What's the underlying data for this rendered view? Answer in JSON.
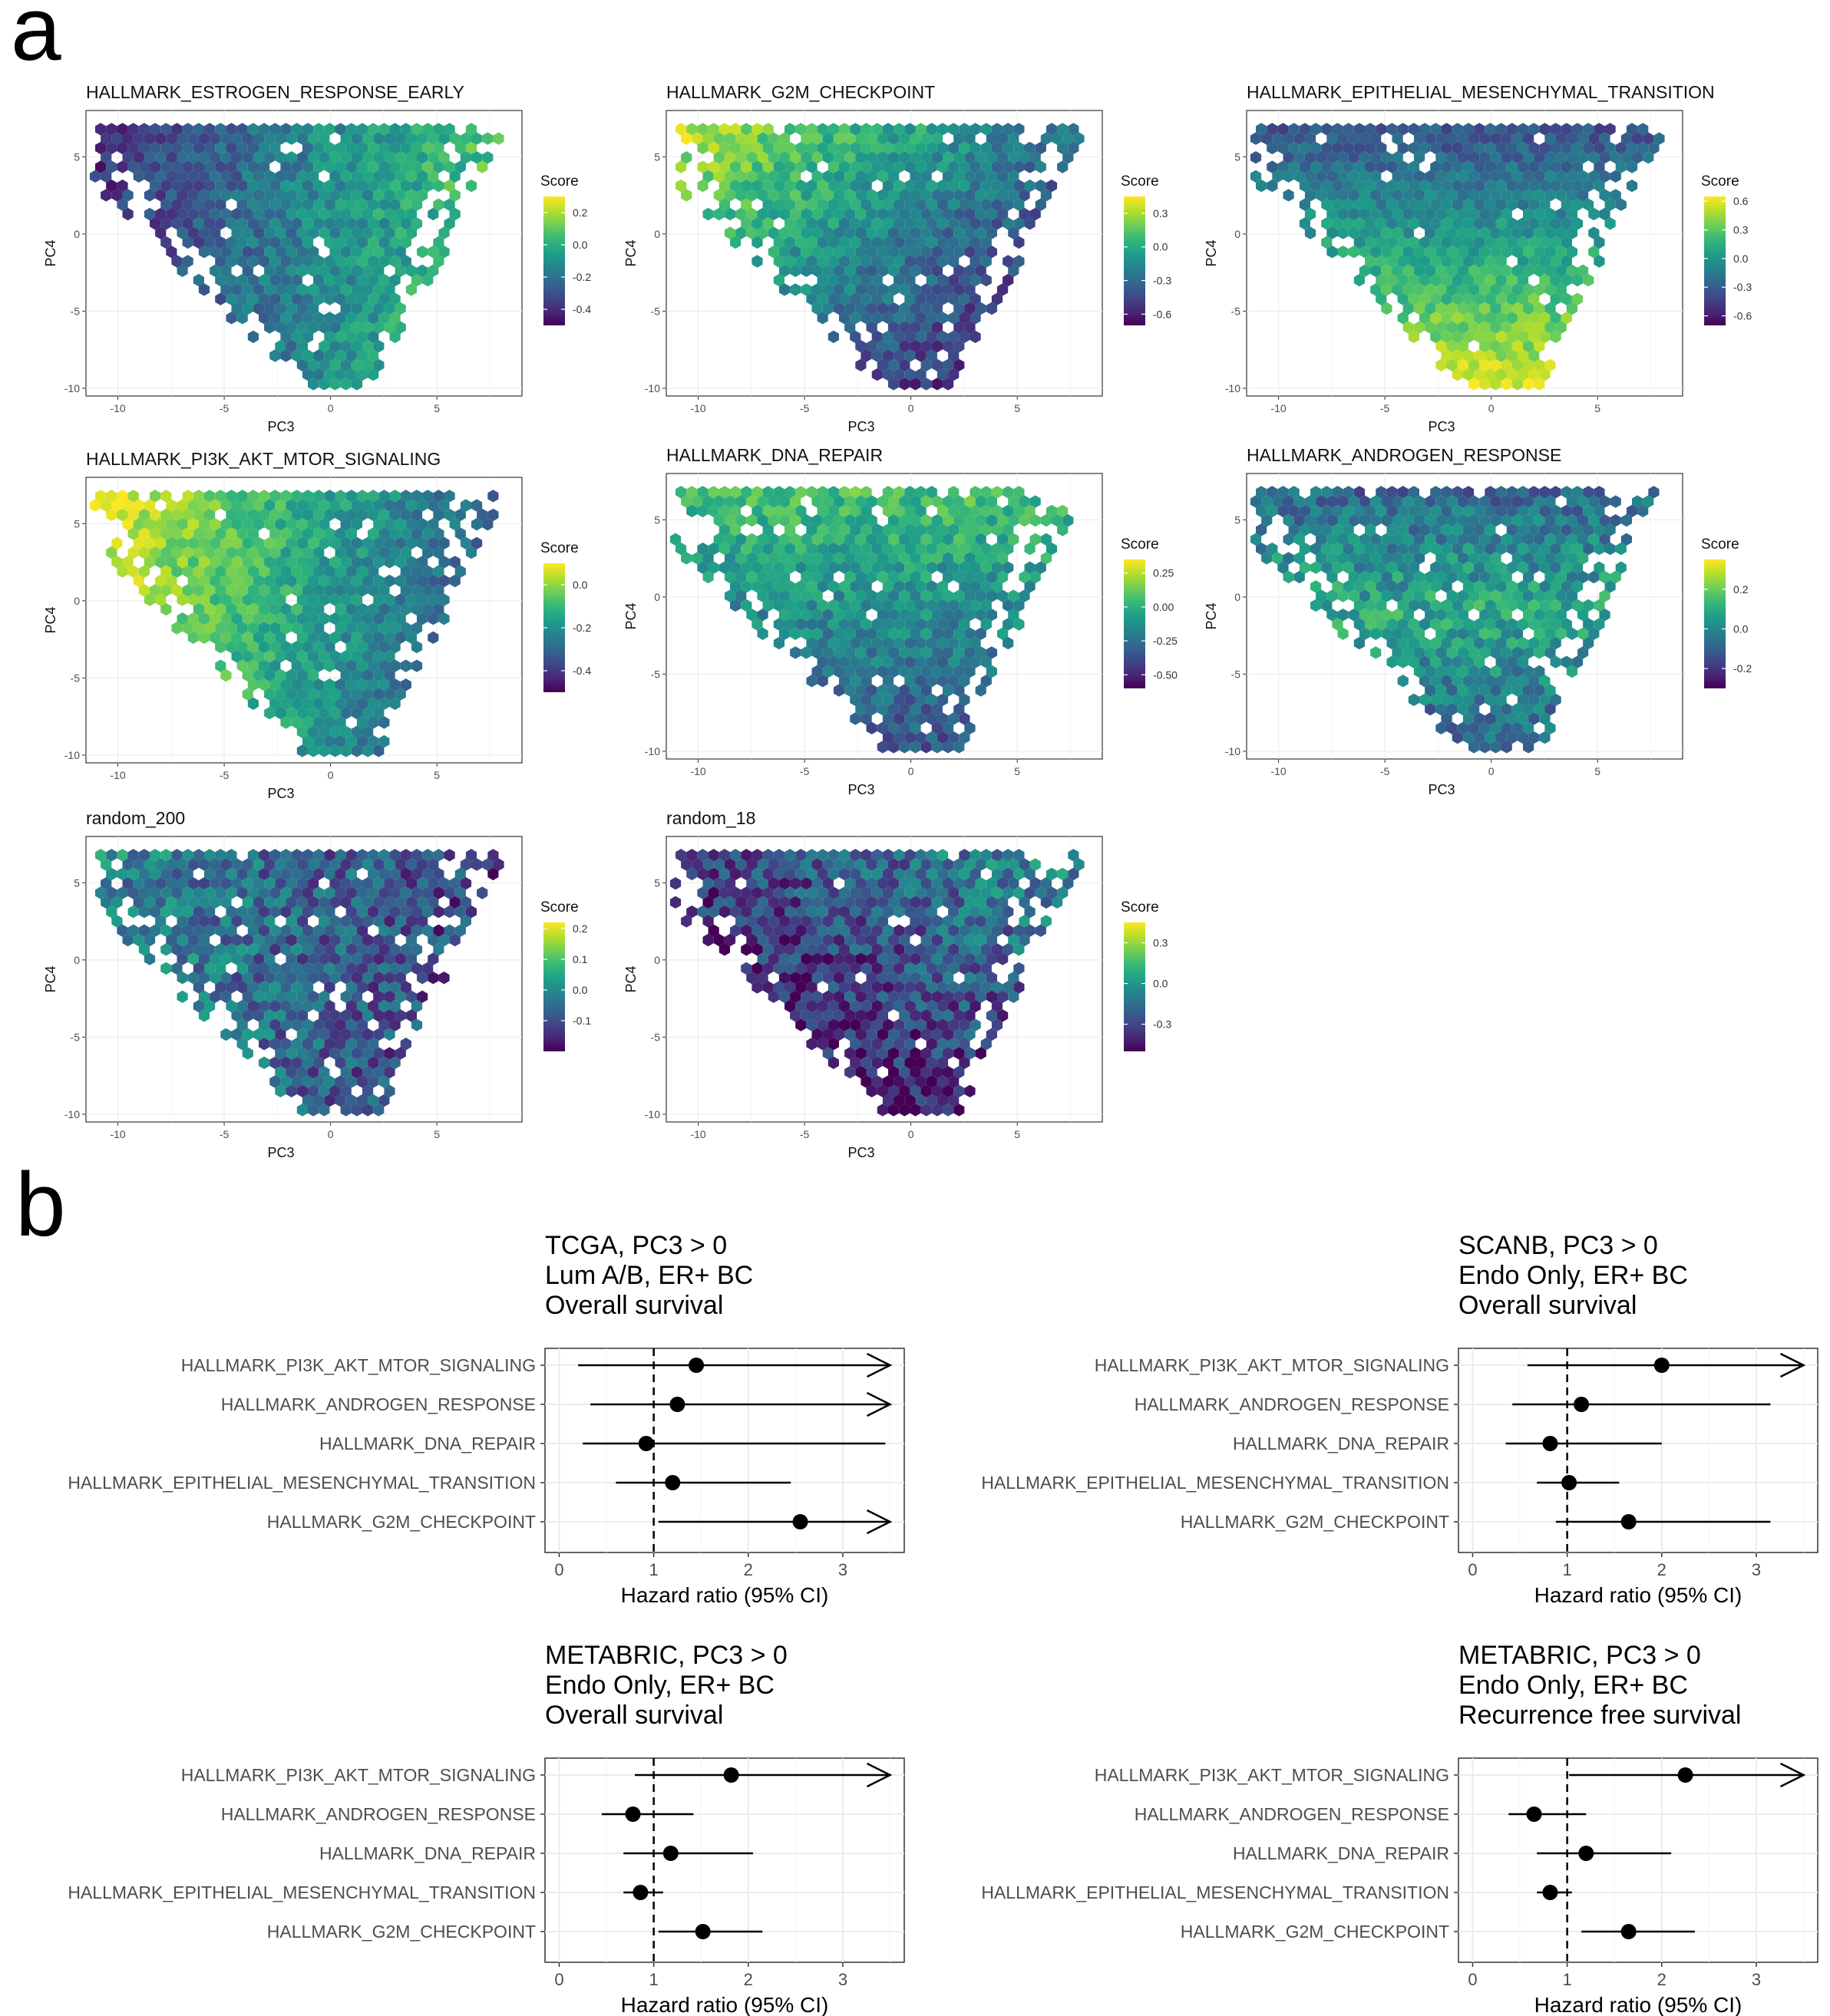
{
  "panels": {
    "a": "a",
    "b": "b"
  },
  "chart_data": [
    {
      "type": "heatmap",
      "title": "HALLMARK_ESTROGEN_RESPONSE_EARLY",
      "xlabel": "PC3",
      "ylabel": "PC4",
      "xticks": [
        "-10",
        "-5",
        "0",
        "5"
      ],
      "yticks": [
        "5",
        "0",
        "-5",
        "-10"
      ],
      "xlim": [
        -11.5,
        9
      ],
      "ylim": [
        -10.5,
        8
      ],
      "legend_title": "Score",
      "legend_ticks": [
        "0.2",
        "0.0",
        "-0.2",
        "-0.4"
      ],
      "legend_values": [
        0.2,
        0.0,
        -0.2,
        -0.4
      ],
      "score_range": [
        -0.5,
        0.3
      ],
      "pattern": "left-low, right-high"
    },
    {
      "type": "heatmap",
      "title": "HALLMARK_G2M_CHECKPOINT",
      "xlabel": "PC3",
      "ylabel": "PC4",
      "xticks": [
        "-10",
        "-5",
        "0",
        "5"
      ],
      "yticks": [
        "5",
        "0",
        "-5",
        "-10"
      ],
      "xlim": [
        -11.5,
        9
      ],
      "ylim": [
        -10.5,
        8
      ],
      "legend_title": "Score",
      "legend_ticks": [
        "0.3",
        "0.0",
        "-0.3",
        "-0.6"
      ],
      "legend_values": [
        0.3,
        0.0,
        -0.3,
        -0.6
      ],
      "score_range": [
        -0.7,
        0.45
      ],
      "pattern": "upper-left high, lower-right low"
    },
    {
      "type": "heatmap",
      "title": "HALLMARK_EPITHELIAL_MESENCHYMAL_TRANSITION",
      "xlabel": "PC3",
      "ylabel": "PC4",
      "xticks": [
        "-10",
        "-5",
        "0",
        "5"
      ],
      "yticks": [
        "5",
        "0",
        "-5",
        "-10"
      ],
      "xlim": [
        -11.5,
        9
      ],
      "ylim": [
        -10.5,
        8
      ],
      "legend_title": "Score",
      "legend_ticks": [
        "0.6",
        "0.3",
        "0.0",
        "-0.3",
        "-0.6"
      ],
      "legend_values": [
        0.6,
        0.3,
        0.0,
        -0.3,
        -0.6
      ],
      "score_range": [
        -0.7,
        0.65
      ],
      "pattern": "bottom high, top low"
    },
    {
      "type": "heatmap",
      "title": "HALLMARK_PI3K_AKT_MTOR_SIGNALING",
      "xlabel": "PC3",
      "ylabel": "PC4",
      "xticks": [
        "-10",
        "-5",
        "0",
        "5"
      ],
      "yticks": [
        "5",
        "0",
        "-5",
        "-10"
      ],
      "xlim": [
        -11.5,
        9
      ],
      "ylim": [
        -10.5,
        8
      ],
      "legend_title": "Score",
      "legend_ticks": [
        "0.0",
        "-0.2",
        "-0.4"
      ],
      "legend_values": [
        0.0,
        -0.2,
        -0.4
      ],
      "score_range": [
        -0.5,
        0.1
      ],
      "pattern": "left high, right low"
    },
    {
      "type": "heatmap",
      "title": "HALLMARK_DNA_REPAIR",
      "xlabel": "PC3",
      "ylabel": "PC4",
      "xticks": [
        "-10",
        "-5",
        "0",
        "5"
      ],
      "yticks": [
        "5",
        "0",
        "-5",
        "-10"
      ],
      "xlim": [
        -11.5,
        9
      ],
      "ylim": [
        -10.5,
        8
      ],
      "legend_title": "Score",
      "legend_ticks": [
        "0.25",
        "0.00",
        "-0.25",
        "-0.50"
      ],
      "legend_values": [
        0.25,
        0.0,
        -0.25,
        -0.5
      ],
      "score_range": [
        -0.6,
        0.35
      ],
      "pattern": "top high, bottom low"
    },
    {
      "type": "heatmap",
      "title": "HALLMARK_ANDROGEN_RESPONSE",
      "xlabel": "PC3",
      "ylabel": "PC4",
      "xticks": [
        "-10",
        "-5",
        "0",
        "5"
      ],
      "yticks": [
        "5",
        "0",
        "-5",
        "-10"
      ],
      "xlim": [
        -11.5,
        9
      ],
      "ylim": [
        -10.5,
        8
      ],
      "legend_title": "Score",
      "legend_ticks": [
        "0.2",
        "0.0",
        "-0.2"
      ],
      "legend_values": [
        0.2,
        0.0,
        -0.2
      ],
      "score_range": [
        -0.3,
        0.35
      ],
      "pattern": "center high, top low"
    },
    {
      "type": "heatmap",
      "title": "random_200",
      "xlabel": "PC3",
      "ylabel": "PC4",
      "xticks": [
        "-10",
        "-5",
        "0",
        "5"
      ],
      "yticks": [
        "5",
        "0",
        "-5",
        "-10"
      ],
      "xlim": [
        -11.5,
        9
      ],
      "ylim": [
        -10.5,
        8
      ],
      "legend_title": "Score",
      "legend_ticks": [
        "0.2",
        "0.1",
        "0.0",
        "-0.1"
      ],
      "legend_values": [
        0.2,
        0.1,
        0.0,
        -0.1
      ],
      "score_range": [
        -0.2,
        0.22
      ],
      "pattern": "random, left slightly high"
    },
    {
      "type": "heatmap",
      "title": "random_18",
      "xlabel": "PC3",
      "ylabel": "PC4",
      "xticks": [
        "-10",
        "-5",
        "0",
        "5"
      ],
      "yticks": [
        "5",
        "0",
        "-5",
        "-10"
      ],
      "xlim": [
        -11.5,
        9
      ],
      "ylim": [
        -10.5,
        8
      ],
      "legend_title": "Score",
      "legend_ticks": [
        "0.3",
        "0.0",
        "-0.3"
      ],
      "legend_values": [
        0.3,
        0.0,
        -0.3
      ],
      "score_range": [
        -0.5,
        0.45
      ],
      "pattern": "random, top-right high"
    },
    {
      "type": "scatter",
      "title_lines": [
        "TCGA, PC3 > 0",
        "Lum A/B, ER+ BC",
        "Overall survival"
      ],
      "xlabel": "Hazard ratio (95% CI)",
      "xticks": [
        0,
        1,
        2,
        3
      ],
      "xlim": [
        -0.15,
        3.65
      ],
      "reference_line": 1,
      "rows": [
        {
          "label": "HALLMARK_PI3K_AKT_MTOR_SIGNALING",
          "hr": 1.45,
          "lo": 0.2,
          "hi": 3.5,
          "truncated": true
        },
        {
          "label": "HALLMARK_ANDROGEN_RESPONSE",
          "hr": 1.25,
          "lo": 0.33,
          "hi": 3.5,
          "truncated": true
        },
        {
          "label": "HALLMARK_DNA_REPAIR",
          "hr": 0.92,
          "lo": 0.25,
          "hi": 3.45,
          "truncated": false
        },
        {
          "label": "HALLMARK_EPITHELIAL_MESENCHYMAL_TRANSITION",
          "hr": 1.2,
          "lo": 0.6,
          "hi": 2.45,
          "truncated": false
        },
        {
          "label": "HALLMARK_G2M_CHECKPOINT",
          "hr": 2.55,
          "lo": 1.05,
          "hi": 3.5,
          "truncated": true
        }
      ]
    },
    {
      "type": "scatter",
      "title_lines": [
        "SCANB, PC3 > 0",
        "Endo Only, ER+ BC",
        "Overall survival"
      ],
      "xlabel": "Hazard ratio (95% CI)",
      "xticks": [
        0,
        1,
        2,
        3
      ],
      "xlim": [
        -0.15,
        3.65
      ],
      "reference_line": 1,
      "rows": [
        {
          "label": "HALLMARK_PI3K_AKT_MTOR_SIGNALING",
          "hr": 2.0,
          "lo": 0.58,
          "hi": 3.5,
          "truncated": true
        },
        {
          "label": "HALLMARK_ANDROGEN_RESPONSE",
          "hr": 1.15,
          "lo": 0.42,
          "hi": 3.15,
          "truncated": false
        },
        {
          "label": "HALLMARK_DNA_REPAIR",
          "hr": 0.82,
          "lo": 0.35,
          "hi": 2.0,
          "truncated": false
        },
        {
          "label": "HALLMARK_EPITHELIAL_MESENCHYMAL_TRANSITION",
          "hr": 1.02,
          "lo": 0.68,
          "hi": 1.55,
          "truncated": false
        },
        {
          "label": "HALLMARK_G2M_CHECKPOINT",
          "hr": 1.65,
          "lo": 0.88,
          "hi": 3.15,
          "truncated": false
        }
      ]
    },
    {
      "type": "scatter",
      "title_lines": [
        "METABRIC, PC3 > 0",
        "Endo Only, ER+ BC",
        "Overall survival"
      ],
      "xlabel": "Hazard ratio (95% CI)",
      "xticks": [
        0,
        1,
        2,
        3
      ],
      "xlim": [
        -0.15,
        3.65
      ],
      "reference_line": 1,
      "rows": [
        {
          "label": "HALLMARK_PI3K_AKT_MTOR_SIGNALING",
          "hr": 1.82,
          "lo": 0.8,
          "hi": 3.5,
          "truncated": true
        },
        {
          "label": "HALLMARK_ANDROGEN_RESPONSE",
          "hr": 0.78,
          "lo": 0.45,
          "hi": 1.42,
          "truncated": false
        },
        {
          "label": "HALLMARK_DNA_REPAIR",
          "hr": 1.18,
          "lo": 0.68,
          "hi": 2.05,
          "truncated": false
        },
        {
          "label": "HALLMARK_EPITHELIAL_MESENCHYMAL_TRANSITION",
          "hr": 0.86,
          "lo": 0.68,
          "hi": 1.1,
          "truncated": false
        },
        {
          "label": "HALLMARK_G2M_CHECKPOINT",
          "hr": 1.52,
          "lo": 1.05,
          "hi": 2.15,
          "truncated": false
        }
      ]
    },
    {
      "type": "scatter",
      "title_lines": [
        "METABRIC, PC3 > 0",
        "Endo Only, ER+ BC",
        "Recurrence free survival"
      ],
      "xlabel": "Hazard ratio (95% CI)",
      "xticks": [
        0,
        1,
        2,
        3
      ],
      "xlim": [
        -0.15,
        3.65
      ],
      "reference_line": 1,
      "rows": [
        {
          "label": "HALLMARK_PI3K_AKT_MTOR_SIGNALING",
          "hr": 2.25,
          "lo": 1.02,
          "hi": 3.5,
          "truncated": true
        },
        {
          "label": "HALLMARK_ANDROGEN_RESPONSE",
          "hr": 0.65,
          "lo": 0.38,
          "hi": 1.2,
          "truncated": false
        },
        {
          "label": "HALLMARK_DNA_REPAIR",
          "hr": 1.2,
          "lo": 0.68,
          "hi": 2.1,
          "truncated": false
        },
        {
          "label": "HALLMARK_EPITHELIAL_MESENCHYMAL_TRANSITION",
          "hr": 0.82,
          "lo": 0.68,
          "hi": 1.05,
          "truncated": false
        },
        {
          "label": "HALLMARK_G2M_CHECKPOINT",
          "hr": 1.65,
          "lo": 1.15,
          "hi": 2.35,
          "truncated": false
        }
      ]
    }
  ]
}
